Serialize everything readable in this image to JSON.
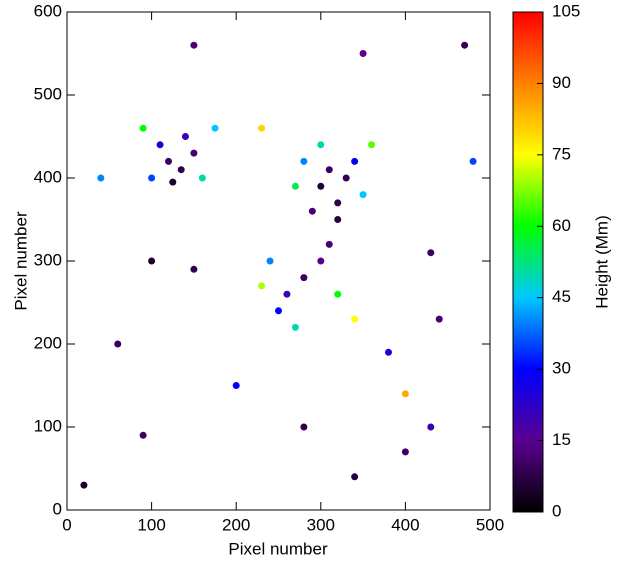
{
  "chart_data": {
    "type": "scatter",
    "xlabel": "Pixel number",
    "ylabel": "Pixel number",
    "xlim": [
      0,
      500
    ],
    "ylim": [
      0,
      600
    ],
    "xticks": [
      0,
      100,
      200,
      300,
      400,
      500
    ],
    "yticks": [
      0,
      100,
      200,
      300,
      400,
      500,
      600
    ],
    "x": [
      120,
      135,
      110,
      150,
      100,
      140,
      160,
      90,
      175,
      125,
      300,
      320,
      310,
      290,
      330,
      340,
      280,
      350,
      270,
      360,
      300,
      320,
      260,
      280,
      250,
      300,
      240,
      320,
      270,
      310,
      230,
      340,
      100,
      150,
      430,
      350,
      440,
      90,
      280,
      430,
      20,
      380,
      60,
      470,
      200,
      480,
      40,
      150,
      400,
      340,
      230,
      400
    ],
    "y": [
      420,
      410,
      440,
      430,
      400,
      450,
      400,
      460,
      460,
      395,
      390,
      370,
      410,
      360,
      400,
      420,
      420,
      380,
      390,
      440,
      440,
      350,
      260,
      280,
      240,
      300,
      300,
      260,
      220,
      320,
      270,
      230,
      300,
      290,
      310,
      550,
      230,
      90,
      100,
      100,
      30,
      190,
      200,
      560,
      150,
      420,
      400,
      560,
      70,
      40,
      460,
      140
    ],
    "values": [
      10,
      8,
      25,
      12,
      35,
      20,
      50,
      60,
      45,
      5,
      6,
      8,
      10,
      12,
      9,
      30,
      40,
      45,
      55,
      65,
      50,
      7,
      20,
      10,
      30,
      15,
      40,
      60,
      50,
      12,
      70,
      75,
      5,
      8,
      10,
      15,
      12,
      10,
      8,
      20,
      5,
      25,
      10,
      8,
      30,
      35,
      40,
      12,
      10,
      6,
      80,
      85
    ],
    "colorbar": {
      "label": "Height (Mm)",
      "lim": [
        0,
        105
      ],
      "ticks": [
        0,
        15,
        30,
        45,
        60,
        75,
        90,
        105
      ],
      "colormap": [
        "#000000",
        "#5a0090",
        "#0000ff",
        "#00c8ff",
        "#00ff00",
        "#ffff00",
        "#ff8000",
        "#ff0000"
      ]
    }
  }
}
